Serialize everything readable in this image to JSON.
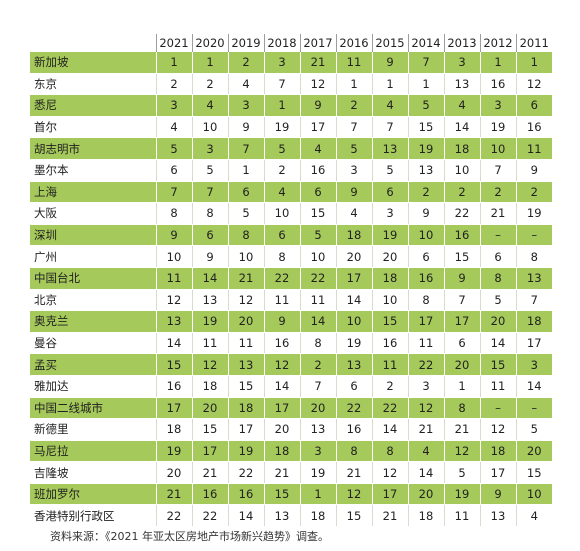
{
  "table": {
    "years": [
      "2021",
      "2020",
      "2019",
      "2018",
      "2017",
      "2016",
      "2015",
      "2014",
      "2013",
      "2012",
      "2011"
    ],
    "rows": [
      {
        "city": "新加坡",
        "ranks": [
          "1",
          "1",
          "2",
          "3",
          "21",
          "11",
          "9",
          "7",
          "3",
          "1",
          "1"
        ]
      },
      {
        "city": "东京",
        "ranks": [
          "2",
          "2",
          "4",
          "7",
          "12",
          "1",
          "1",
          "1",
          "13",
          "16",
          "12"
        ]
      },
      {
        "city": "悉尼",
        "ranks": [
          "3",
          "4",
          "3",
          "1",
          "9",
          "2",
          "4",
          "5",
          "4",
          "3",
          "6"
        ]
      },
      {
        "city": "首尔",
        "ranks": [
          "4",
          "10",
          "9",
          "19",
          "17",
          "7",
          "7",
          "15",
          "14",
          "19",
          "16"
        ]
      },
      {
        "city": "胡志明市",
        "ranks": [
          "5",
          "3",
          "7",
          "5",
          "4",
          "5",
          "13",
          "19",
          "18",
          "10",
          "11"
        ]
      },
      {
        "city": "墨尔本",
        "ranks": [
          "6",
          "5",
          "1",
          "2",
          "16",
          "3",
          "5",
          "13",
          "10",
          "7",
          "9"
        ]
      },
      {
        "city": "上海",
        "ranks": [
          "7",
          "7",
          "6",
          "4",
          "6",
          "9",
          "6",
          "2",
          "2",
          "2",
          "2"
        ]
      },
      {
        "city": "大阪",
        "ranks": [
          "8",
          "8",
          "5",
          "10",
          "15",
          "4",
          "3",
          "9",
          "22",
          "21",
          "19"
        ]
      },
      {
        "city": "深圳",
        "ranks": [
          "9",
          "6",
          "8",
          "6",
          "5",
          "18",
          "19",
          "10",
          "16",
          "–",
          "–"
        ]
      },
      {
        "city": "广州",
        "ranks": [
          "10",
          "9",
          "10",
          "8",
          "10",
          "20",
          "20",
          "6",
          "15",
          "6",
          "8"
        ]
      },
      {
        "city": "中国台北",
        "ranks": [
          "11",
          "14",
          "21",
          "22",
          "22",
          "17",
          "18",
          "16",
          "9",
          "8",
          "13"
        ]
      },
      {
        "city": "北京",
        "ranks": [
          "12",
          "13",
          "12",
          "11",
          "11",
          "14",
          "10",
          "8",
          "7",
          "5",
          "7"
        ]
      },
      {
        "city": "奥克兰",
        "ranks": [
          "13",
          "19",
          "20",
          "9",
          "14",
          "10",
          "15",
          "17",
          "17",
          "20",
          "18"
        ]
      },
      {
        "city": "曼谷",
        "ranks": [
          "14",
          "11",
          "11",
          "16",
          "8",
          "19",
          "16",
          "11",
          "6",
          "14",
          "17"
        ]
      },
      {
        "city": "孟买",
        "ranks": [
          "15",
          "12",
          "13",
          "12",
          "2",
          "13",
          "11",
          "22",
          "20",
          "15",
          "3"
        ]
      },
      {
        "city": "雅加达",
        "ranks": [
          "16",
          "18",
          "15",
          "14",
          "7",
          "6",
          "2",
          "3",
          "1",
          "11",
          "14"
        ]
      },
      {
        "city": "中国二线城市",
        "ranks": [
          "17",
          "20",
          "18",
          "17",
          "20",
          "22",
          "22",
          "12",
          "8",
          "–",
          "–"
        ]
      },
      {
        "city": "新德里",
        "ranks": [
          "18",
          "15",
          "17",
          "20",
          "13",
          "16",
          "14",
          "21",
          "21",
          "12",
          "5"
        ]
      },
      {
        "city": "马尼拉",
        "ranks": [
          "19",
          "17",
          "19",
          "18",
          "3",
          "8",
          "8",
          "4",
          "12",
          "18",
          "20"
        ]
      },
      {
        "city": "吉隆坡",
        "ranks": [
          "20",
          "21",
          "22",
          "21",
          "19",
          "21",
          "12",
          "14",
          "5",
          "17",
          "15"
        ]
      },
      {
        "city": "班加罗尔",
        "ranks": [
          "21",
          "16",
          "16",
          "15",
          "1",
          "12",
          "17",
          "20",
          "19",
          "9",
          "10"
        ]
      },
      {
        "city": "香港特别行政区",
        "ranks": [
          "22",
          "22",
          "14",
          "13",
          "18",
          "15",
          "21",
          "18",
          "11",
          "13",
          "4"
        ]
      }
    ]
  },
  "source": "资料来源：《2021 年亚太区房地产市场新兴趋势》调查。",
  "colors": {
    "row_band": "#a5c95a",
    "row_plain": "#ffffff"
  }
}
